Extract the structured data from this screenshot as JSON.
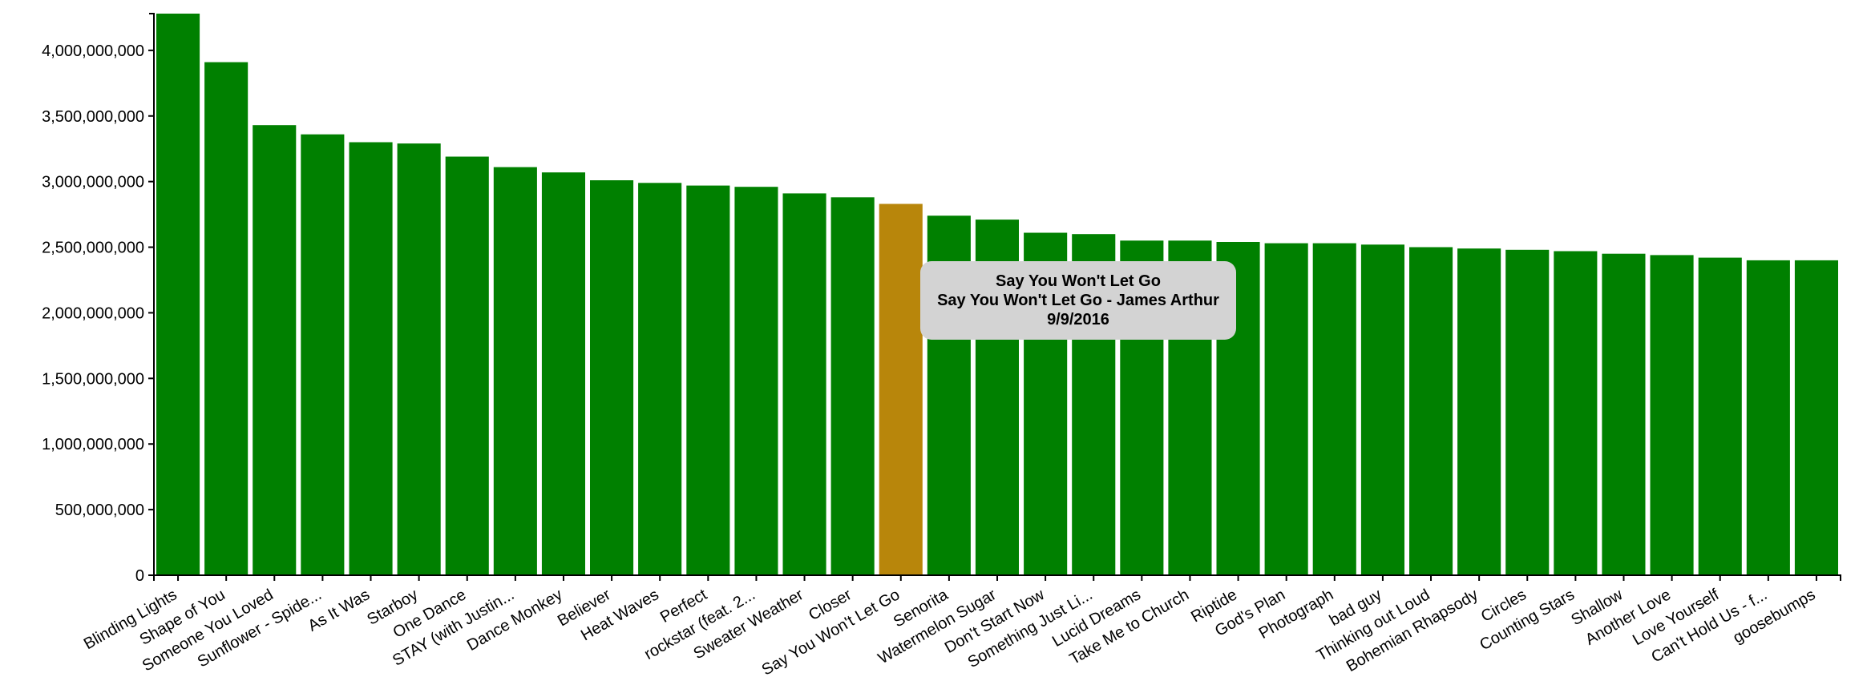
{
  "chart_data": {
    "type": "bar",
    "categories": [
      "Blinding Lights",
      "Shape of You",
      "Someone You Loved",
      "Sunflower - Spide...",
      "As It Was",
      "Starboy",
      "One Dance",
      "STAY (with Justin...",
      "Dance Monkey",
      "Believer",
      "Heat Waves",
      "Perfect",
      "rockstar (feat. 2...",
      "Sweater Weather",
      "Closer",
      "Say You Won't Let Go",
      "Senorita",
      "Watermelon Sugar",
      "Don't Start Now",
      "Something Just Li...",
      "Lucid Dreams",
      "Take Me to Church",
      "Riptide",
      "God's Plan",
      "Photograph",
      "bad guy",
      "Thinking out Loud",
      "Bohemian Rhapsody",
      "Circles",
      "Counting Stars",
      "Shallow",
      "Another Love",
      "Love Yourself",
      "Can't Hold Us - f...",
      "goosebumps"
    ],
    "values": [
      4280000000,
      3910000000,
      3430000000,
      3360000000,
      3300000000,
      3290000000,
      3190000000,
      3110000000,
      3070000000,
      3010000000,
      2990000000,
      2970000000,
      2960000000,
      2910000000,
      2880000000,
      2830000000,
      2740000000,
      2710000000,
      2610000000,
      2600000000,
      2550000000,
      2550000000,
      2540000000,
      2530000000,
      2530000000,
      2520000000,
      2500000000,
      2490000000,
      2480000000,
      2470000000,
      2450000000,
      2440000000,
      2420000000,
      2400000000,
      2400000000
    ],
    "yticks": [
      "0",
      "500,000,000",
      "1,000,000,000",
      "1,500,000,000",
      "2,000,000,000",
      "2,500,000,000",
      "3,000,000,000",
      "3,500,000,000",
      "4,000,000,000"
    ],
    "ylim": [
      0,
      4280000000
    ],
    "title": "",
    "xlabel": "",
    "ylabel": "",
    "grid": false,
    "highlighted_index": 15
  },
  "colors": {
    "bar": "#008000",
    "highlight": "#b8860b",
    "tooltip_bg": "#d3d3d3"
  },
  "tooltip": {
    "title": "Say You Won't Let Go",
    "subtitle": "Say You Won't Let Go - James Arthur",
    "date": "9/9/2016"
  }
}
